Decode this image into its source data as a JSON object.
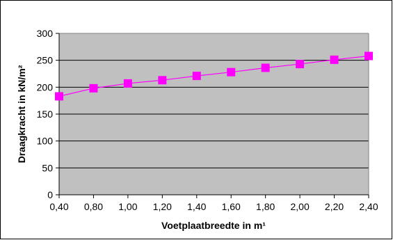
{
  "chart_data": {
    "type": "line",
    "title": "",
    "xlabel": "Voetplaatbreedte in m¹",
    "ylabel": "Draagkracht in kN/m²",
    "categories": [
      "0,40",
      "0,80",
      "1,00",
      "1,20",
      "1,40",
      "1,60",
      "1,80",
      "2,00",
      "2,20",
      "2,40"
    ],
    "series": [
      {
        "values": [
          183,
          198,
          207,
          213,
          221,
          228,
          236,
          243,
          251,
          258
        ]
      }
    ],
    "ylim": [
      0,
      300
    ],
    "yticks": [
      "0",
      "50",
      "100",
      "150",
      "200",
      "250",
      "300"
    ],
    "grid": "horizontal",
    "legend": "none",
    "colors": {
      "plot_background": "#c0c0c0",
      "line": "#ff00ff",
      "marker": "#ff00ff",
      "gridline": "#000000",
      "frame": "#000000"
    },
    "marker_shape": "square"
  }
}
